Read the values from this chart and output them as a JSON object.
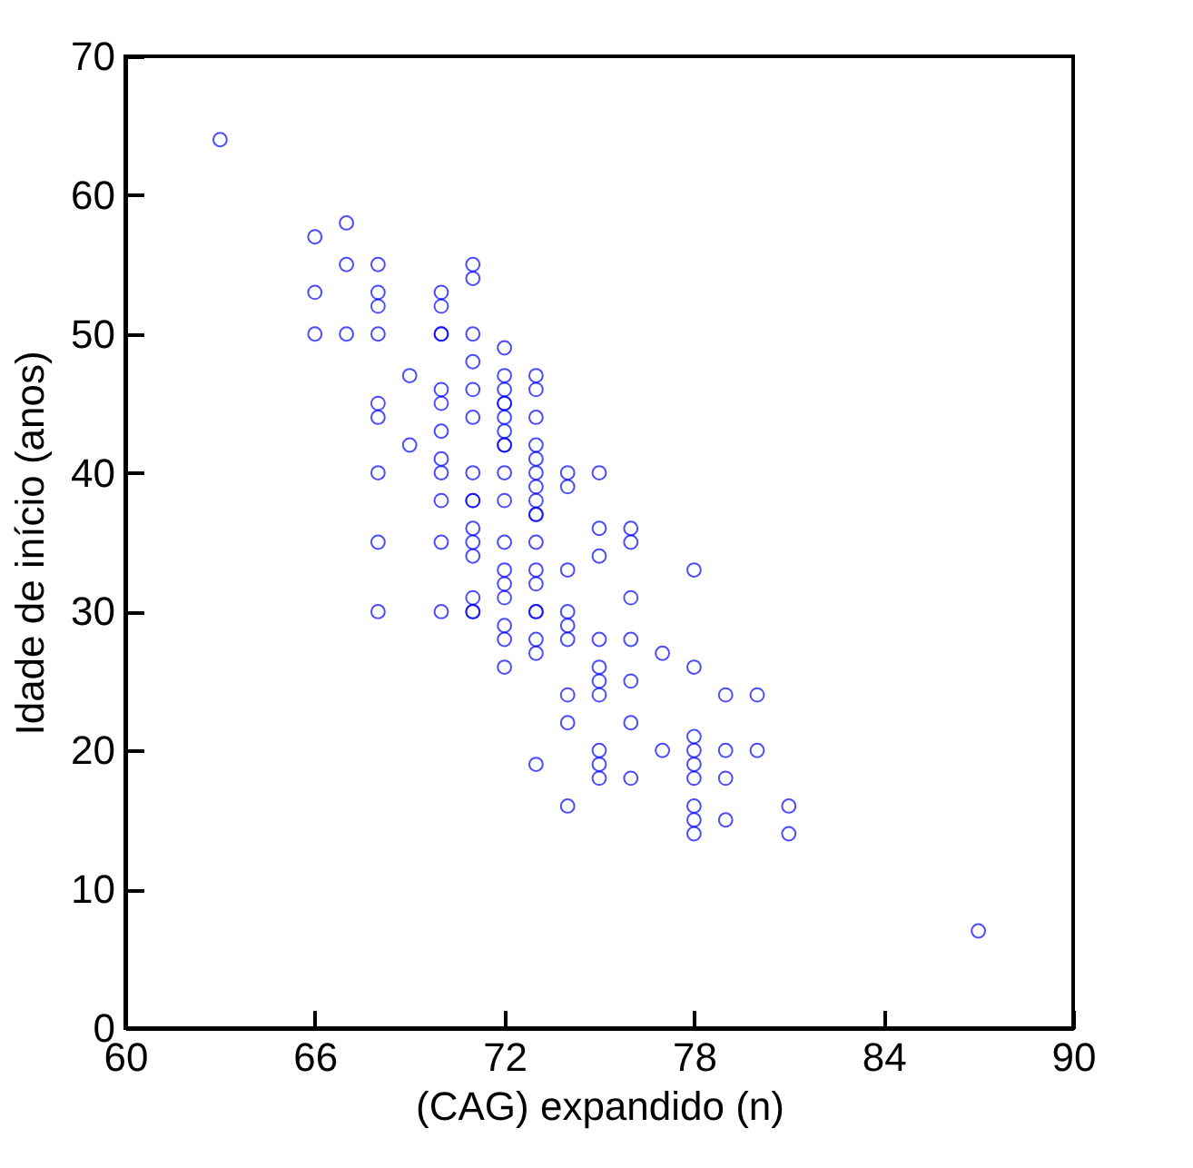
{
  "chart_data": {
    "type": "scatter",
    "xlabel": "(CAG) expandido (n)",
    "ylabel": "Idade de início (anos)",
    "xlim": [
      60,
      90
    ],
    "xticks": [
      60,
      66,
      72,
      78,
      84,
      90
    ],
    "ylim": [
      0,
      70
    ],
    "yticks": [
      0,
      10,
      20,
      30,
      40,
      50,
      60,
      70
    ],
    "grid": false,
    "marker": "circle",
    "series": [
      {
        "color": "#0000ff",
        "x": [
          63,
          66,
          66,
          66,
          67,
          67,
          67,
          68,
          68,
          68,
          68,
          68,
          68,
          68,
          68,
          68,
          69,
          69,
          70,
          70,
          70,
          70,
          70,
          70,
          70,
          70,
          70,
          70,
          70,
          70,
          71,
          71,
          71,
          71,
          71,
          71,
          71,
          71,
          71,
          71,
          71,
          71,
          71,
          71,
          71,
          72,
          72,
          72,
          72,
          72,
          72,
          72,
          72,
          72,
          72,
          72,
          72,
          72,
          72,
          72,
          72,
          72,
          72,
          73,
          73,
          73,
          73,
          73,
          73,
          73,
          73,
          73,
          73,
          73,
          73,
          73,
          73,
          73,
          73,
          73,
          73,
          74,
          74,
          74,
          74,
          74,
          74,
          74,
          74,
          74,
          75,
          75,
          75,
          75,
          75,
          75,
          75,
          75,
          75,
          75,
          76,
          76,
          76,
          76,
          76,
          76,
          76,
          77,
          77,
          78,
          78,
          78,
          78,
          78,
          78,
          78,
          78,
          78,
          79,
          79,
          79,
          79,
          80,
          80,
          81,
          81,
          87
        ],
        "values": [
          64,
          57,
          53,
          50,
          58,
          55,
          50,
          55,
          53,
          52,
          50,
          45,
          44,
          40,
          35,
          30,
          47,
          42,
          53,
          52,
          50,
          50,
          46,
          45,
          43,
          41,
          40,
          38,
          35,
          30,
          55,
          54,
          50,
          48,
          46,
          44,
          40,
          38,
          38,
          36,
          35,
          34,
          31,
          30,
          30,
          49,
          47,
          46,
          45,
          45,
          44,
          43,
          42,
          42,
          40,
          38,
          35,
          33,
          32,
          31,
          29,
          28,
          26,
          47,
          46,
          44,
          42,
          41,
          40,
          39,
          38,
          37,
          37,
          35,
          33,
          32,
          30,
          30,
          28,
          27,
          19,
          40,
          39,
          33,
          30,
          29,
          28,
          24,
          22,
          16,
          40,
          36,
          34,
          28,
          26,
          25,
          24,
          20,
          19,
          18,
          36,
          35,
          31,
          28,
          25,
          22,
          18,
          27,
          20,
          33,
          26,
          21,
          20,
          19,
          18,
          16,
          15,
          14,
          24,
          20,
          18,
          15,
          24,
          20,
          16,
          14,
          7
        ]
      }
    ]
  }
}
